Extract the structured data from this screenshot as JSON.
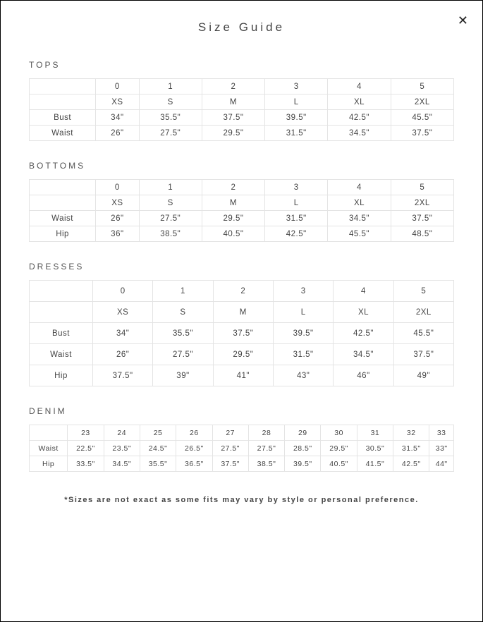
{
  "title": "Size Guide",
  "close_glyph": "✕",
  "footnote": "*Sizes are not exact as some fits may vary by style or personal preference.",
  "border_color": "#e4e4e4",
  "text_color": "#444",
  "tops": {
    "label": "TOPS",
    "columns_num": [
      "0",
      "1",
      "2",
      "3",
      "4",
      "5"
    ],
    "columns_size": [
      "XS",
      "S",
      "M",
      "L",
      "XL",
      "2XL"
    ],
    "rows": [
      {
        "label": "Bust",
        "values": [
          "34\"",
          "35.5\"",
          "37.5\"",
          "39.5\"",
          "42.5\"",
          "45.5\""
        ]
      },
      {
        "label": "Waist",
        "values": [
          "26\"",
          "27.5\"",
          "29.5\"",
          "31.5\"",
          "34.5\"",
          "37.5\""
        ]
      }
    ]
  },
  "bottoms": {
    "label": "BOTTOMS",
    "columns_num": [
      "0",
      "1",
      "2",
      "3",
      "4",
      "5"
    ],
    "columns_size": [
      "XS",
      "S",
      "M",
      "L",
      "XL",
      "2XL"
    ],
    "rows": [
      {
        "label": "Waist",
        "values": [
          "26\"",
          "27.5\"",
          "29.5\"",
          "31.5\"",
          "34.5\"",
          "37.5\""
        ]
      },
      {
        "label": "Hip",
        "values": [
          "36\"",
          "38.5\"",
          "40.5\"",
          "42.5\"",
          "45.5\"",
          "48.5\""
        ]
      }
    ]
  },
  "dresses": {
    "label": "DRESSES",
    "columns_num": [
      "0",
      "1",
      "2",
      "3",
      "4",
      "5"
    ],
    "columns_size": [
      "XS",
      "S",
      "M",
      "L",
      "XL",
      "2XL"
    ],
    "rows": [
      {
        "label": "Bust",
        "values": [
          "34\"",
          "35.5\"",
          "37.5\"",
          "39.5\"",
          "42.5\"",
          "45.5\""
        ]
      },
      {
        "label": "Waist",
        "values": [
          "26\"",
          "27.5\"",
          "29.5\"",
          "31.5\"",
          "34.5\"",
          "37.5\""
        ]
      },
      {
        "label": "Hip",
        "values": [
          "37.5\"",
          "39\"",
          "41\"",
          "43\"",
          "46\"",
          "49\""
        ]
      }
    ]
  },
  "denim": {
    "label": "DENIM",
    "columns_num": [
      "23",
      "24",
      "25",
      "26",
      "27",
      "28",
      "29",
      "30",
      "31",
      "32",
      "33"
    ],
    "rows": [
      {
        "label": "Waist",
        "values": [
          "22.5\"",
          "23.5\"",
          "24.5\"",
          "26.5\"",
          "27.5\"",
          "27.5\"",
          "28.5\"",
          "29.5\"",
          "30.5\"",
          "31.5\"",
          "33\""
        ]
      },
      {
        "label": "Hip",
        "values": [
          "33.5\"",
          "34.5\"",
          "35.5\"",
          "36.5\"",
          "37.5\"",
          "38.5\"",
          "39.5\"",
          "40.5\"",
          "41.5\"",
          "42.5\"",
          "44\""
        ]
      }
    ]
  }
}
